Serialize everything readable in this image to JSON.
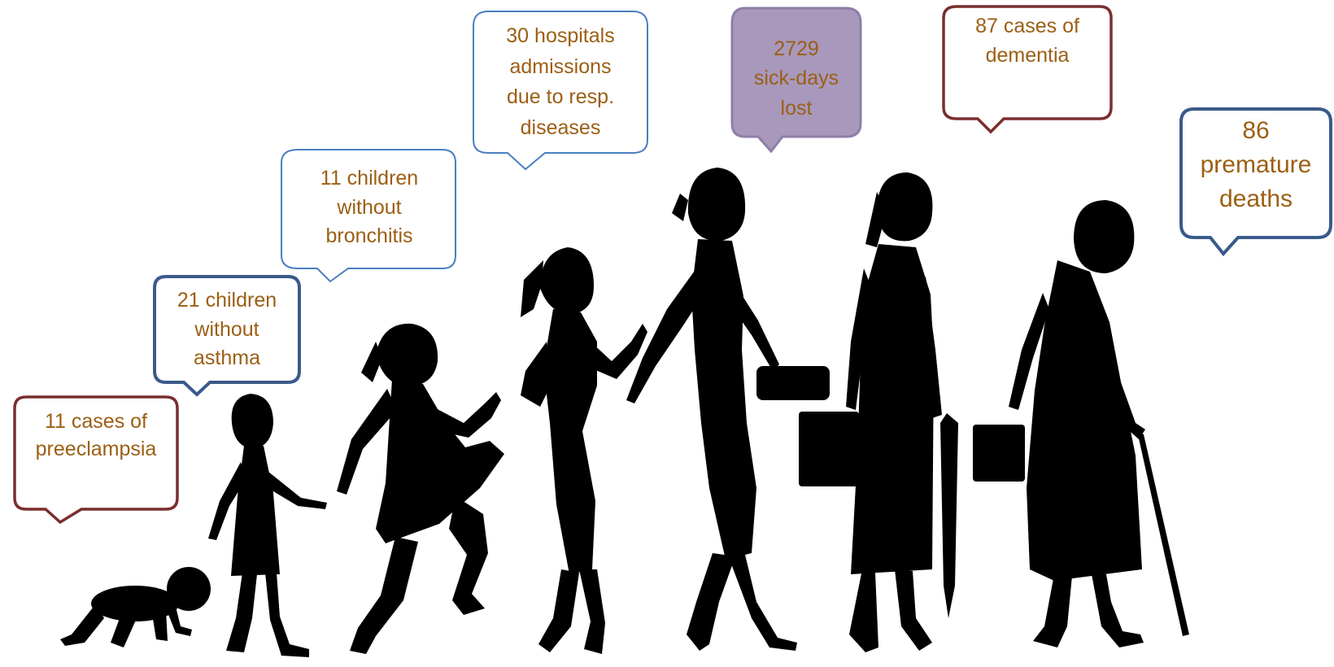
{
  "colors": {
    "text": "#9b5f14",
    "silhouette": "#000000",
    "border_dark_red": "#7a2e2e",
    "border_blue": "#3b5a8a",
    "border_light_blue": "#4a7fc0",
    "fill_purple": "#a898bc"
  },
  "bubbles": [
    {
      "id": "preeclampsia",
      "text": "11 cases of\npreeclampsia"
    },
    {
      "id": "asthma",
      "text": "21 children\nwithout\nasthma"
    },
    {
      "id": "bronchitis",
      "text": "11 children\nwithout\nbronchitis"
    },
    {
      "id": "hospital",
      "text": "30 hospitals\nadmissions\ndue to resp.\ndiseases"
    },
    {
      "id": "sickdays",
      "text": "2729\nsick-days\nlost"
    },
    {
      "id": "dementia",
      "text": "87 cases of\ndementia"
    },
    {
      "id": "deaths",
      "text": "86\npremature\ndeaths"
    }
  ],
  "figures": [
    {
      "name": "baby-crawling-silhouette"
    },
    {
      "name": "toddler-girl-silhouette"
    },
    {
      "name": "running-girl-silhouette"
    },
    {
      "name": "teen-girl-silhouette"
    },
    {
      "name": "walking-woman-silhouette"
    },
    {
      "name": "middle-aged-woman-silhouette"
    },
    {
      "name": "elderly-woman-with-cane-silhouette"
    }
  ]
}
